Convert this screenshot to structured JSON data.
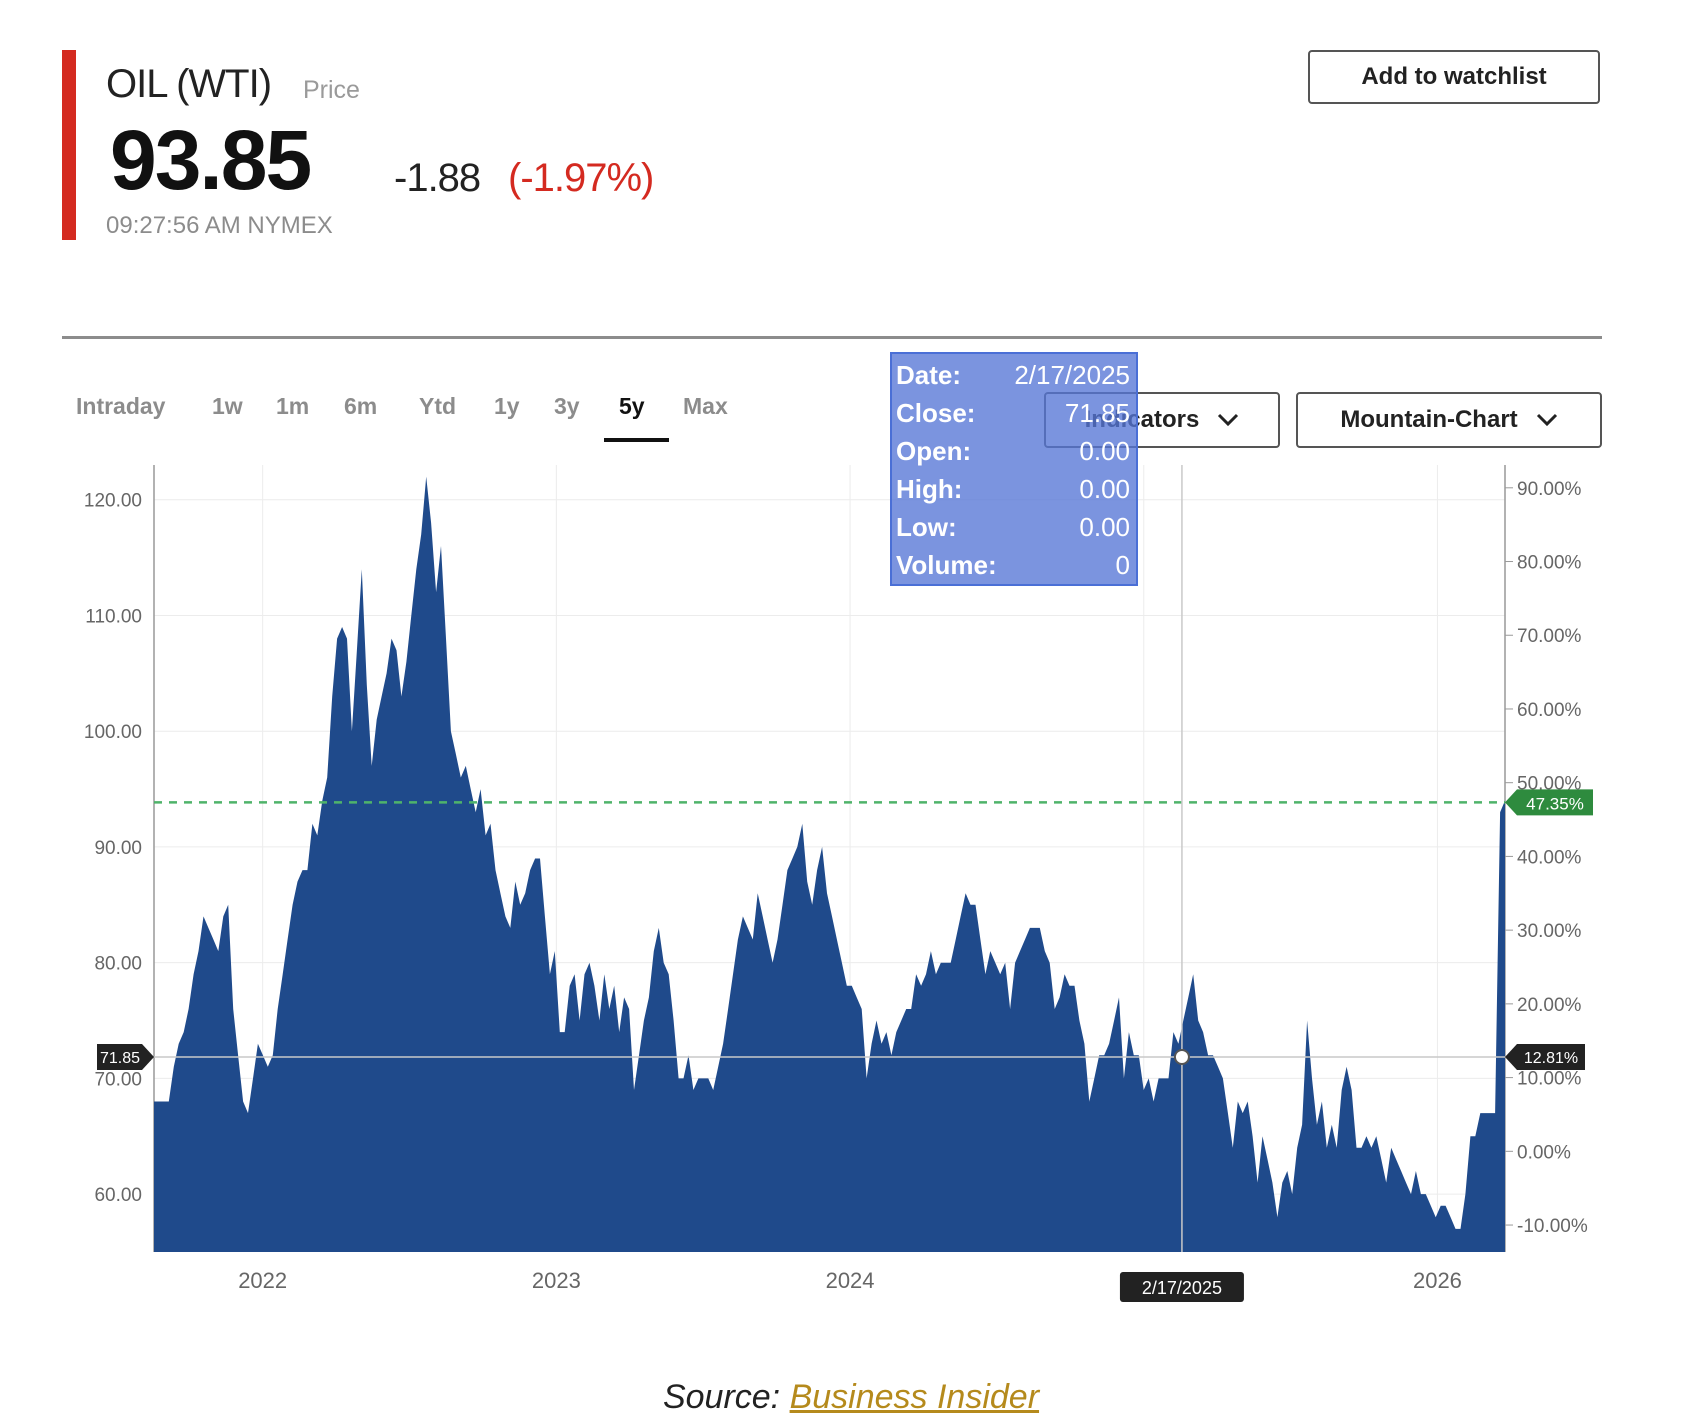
{
  "header": {
    "title": "OIL (WTI)",
    "subtitle": "Price",
    "price": "93.85",
    "change": "-1.88",
    "change_pct": "(-1.97%)",
    "timestamp": "09:27:56 AM  NYMEX",
    "watchlist_label": "Add to watchlist"
  },
  "colors": {
    "accent": "#d42a20",
    "area": "#1f4a8b",
    "positive": "#2e8b3e",
    "dashed": "#4fb36a"
  },
  "tabs": [
    {
      "label": "Intraday"
    },
    {
      "label": "1w"
    },
    {
      "label": "1m"
    },
    {
      "label": "6m"
    },
    {
      "label": "Ytd"
    },
    {
      "label": "1y"
    },
    {
      "label": "3y"
    },
    {
      "label": "5y"
    },
    {
      "label": "Max"
    }
  ],
  "active_tab": "5y",
  "controls": {
    "indicators_label": "Indicators",
    "chart_type_label": "Mountain-Chart"
  },
  "tooltip": {
    "rows": [
      {
        "label": "Date:",
        "value": "2/17/2025"
      },
      {
        "label": "Close:",
        "value": "71.85"
      },
      {
        "label": "Open:",
        "value": "0.00"
      },
      {
        "label": "High:",
        "value": "0.00"
      },
      {
        "label": "Low:",
        "value": "0.00"
      },
      {
        "label": "Volume:",
        "value": "0"
      }
    ]
  },
  "chart_data": {
    "type": "area",
    "x_start": 2021.63,
    "x_end": 2026.23,
    "xlim": [
      2021.63,
      2026.23
    ],
    "ylim": [
      55,
      123
    ],
    "y_ticks": [
      "60.00",
      "70.00",
      "80.00",
      "90.00",
      "100.00",
      "110.00",
      "120.00"
    ],
    "y_tick_values": [
      60,
      70,
      80,
      90,
      100,
      110,
      120
    ],
    "right_ticks": [
      "-10.00%",
      "0.00%",
      "10.00%",
      "20.00%",
      "30.00%",
      "40.00%",
      "50.00%",
      "60.00%",
      "70.00%",
      "80.00%",
      "90.00%"
    ],
    "right_tick_values": [
      -10,
      0,
      10,
      20,
      30,
      40,
      50,
      60,
      70,
      80,
      90
    ],
    "right_ref_price": 63.7,
    "x_ticks": [
      "2022",
      "2023",
      "2024",
      "2025",
      "2026"
    ],
    "x_tick_values": [
      2022,
      2023,
      2024,
      2025,
      2026
    ],
    "cursor_x": 2025.13,
    "cursor_value": "71.85",
    "cursor_y": 71.85,
    "cursor_date_label": "2/17/2025",
    "cursor_pct": "12.81%",
    "current_value": 93.85,
    "current_pct": "47.35%",
    "values": [
      68,
      68,
      68,
      68,
      71,
      73,
      74,
      76,
      79,
      81,
      84,
      83,
      82,
      81,
      84,
      85,
      76,
      72,
      68,
      67,
      70,
      73,
      72,
      71,
      72,
      76,
      79,
      82,
      85,
      87,
      88,
      88,
      92,
      91,
      94,
      96,
      103,
      108,
      109,
      108,
      100,
      107,
      114,
      104,
      97,
      101,
      103,
      105,
      108,
      107,
      103,
      106,
      110,
      114,
      117,
      122,
      118,
      112,
      116,
      108,
      100,
      98,
      96,
      97,
      95,
      93,
      95,
      91,
      92,
      88,
      86,
      84,
      83,
      87,
      85,
      86,
      88,
      89,
      89,
      84,
      79,
      81,
      74,
      74,
      78,
      79,
      75,
      79,
      80,
      78,
      75,
      79,
      76,
      78,
      74,
      77,
      76,
      69,
      72,
      75,
      77,
      81,
      83,
      80,
      79,
      75,
      70,
      70,
      72,
      69,
      70,
      70,
      70,
      69,
      71,
      73,
      76,
      79,
      82,
      84,
      83,
      82,
      86,
      84,
      82,
      80,
      82,
      85,
      88,
      89,
      90,
      92,
      87,
      85,
      88,
      90,
      86,
      84,
      82,
      80,
      78,
      78,
      77,
      76,
      70,
      73,
      75,
      73,
      74,
      72,
      74,
      75,
      76,
      76,
      79,
      78,
      79,
      81,
      79,
      80,
      80,
      80,
      82,
      84,
      86,
      85,
      85,
      82,
      79,
      81,
      80,
      79,
      80,
      76,
      80,
      81,
      82,
      83,
      83,
      83,
      81,
      80,
      76,
      77,
      79,
      78,
      78,
      75,
      73,
      68,
      70,
      72,
      72,
      73,
      75,
      77,
      70,
      74,
      72,
      72,
      69,
      70,
      68,
      70,
      70,
      70,
      74,
      73,
      75,
      77,
      79,
      75,
      74,
      72,
      72,
      71,
      70,
      67,
      64,
      68,
      67,
      68,
      65,
      61,
      65,
      63,
      61,
      58,
      61,
      62,
      60,
      64,
      66,
      75,
      70,
      66,
      68,
      64,
      66,
      64,
      69,
      71,
      69,
      64,
      64,
      65,
      64,
      65,
      63,
      61,
      64,
      63,
      62,
      61,
      60,
      62,
      60,
      60,
      59,
      58,
      59,
      59,
      58,
      57,
      57,
      60,
      65,
      65,
      67,
      67,
      67,
      67,
      93,
      94
    ]
  },
  "source": {
    "prefix": "Source: ",
    "link_label": "Business Insider"
  }
}
